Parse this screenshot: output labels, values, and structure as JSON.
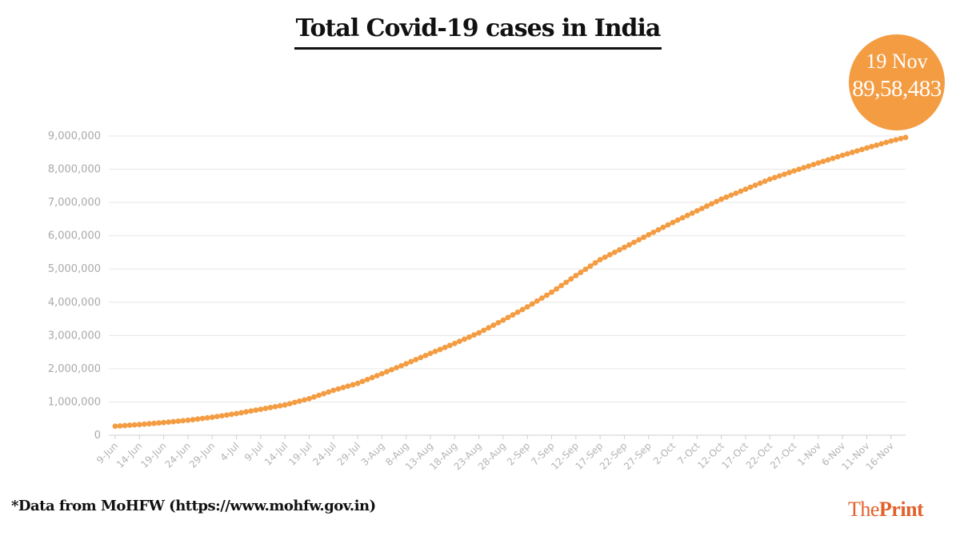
{
  "title": "Total Covid-19 cases in India",
  "callout": {
    "date": "19 Nov",
    "value": "89,58,483",
    "color": "#F39C42"
  },
  "footnote": "*Data from MoHFW (https://www.mohfw.gov.in)",
  "brand": {
    "part1": "The",
    "part2": "Print",
    "color": "#E35F2A"
  },
  "chart_data": {
    "type": "line",
    "title": "Total Covid-19 cases in India",
    "xlabel": "",
    "ylabel": "",
    "ylim": [
      0,
      9000000
    ],
    "yticks": [
      "0",
      "1,000,000",
      "2,000,000",
      "3,000,000",
      "4,000,000",
      "5,000,000",
      "6,000,000",
      "7,000,000",
      "8,000,000",
      "9,000,000"
    ],
    "xticks": [
      "9-Jun",
      "14-Jun",
      "19-Jun",
      "24-Jun",
      "29-Jun",
      "4-Jul",
      "9-Jul",
      "14-Jul",
      "19-Jul",
      "24-Jul",
      "29-Jul",
      "3-Aug",
      "8-Aug",
      "13-Aug",
      "18-Aug",
      "23-Aug",
      "28-Aug",
      "2-Sep",
      "7-Sep",
      "12-Sep",
      "17-Sep",
      "22-Sep",
      "27-Sep",
      "2-Oct",
      "7-Oct",
      "12-Oct",
      "17-Oct",
      "22-Oct",
      "27-Oct",
      "1-Nov",
      "6-Nov",
      "11-Nov",
      "16-Nov"
    ],
    "x_range": [
      "9-Jun",
      "19-Nov"
    ],
    "grid": true,
    "marker": "circle",
    "line_color": "#F39C42",
    "series": [
      {
        "x": [
          "9-Jun",
          "14-Jun",
          "19-Jun",
          "24-Jun",
          "29-Jun",
          "4-Jul",
          "9-Jul",
          "14-Jul",
          "19-Jul",
          "24-Jul",
          "29-Jul",
          "3-Aug",
          "8-Aug",
          "13-Aug",
          "18-Aug",
          "23-Aug",
          "28-Aug",
          "2-Sep",
          "7-Sep",
          "12-Sep",
          "17-Sep",
          "22-Sep",
          "27-Sep",
          "2-Oct",
          "7-Oct",
          "12-Oct",
          "17-Oct",
          "22-Oct",
          "27-Oct",
          "1-Nov",
          "6-Nov",
          "11-Nov",
          "16-Nov",
          "19-Nov"
        ],
        "values": [
          270000,
          320000,
          380000,
          450000,
          540000,
          650000,
          780000,
          910000,
          1100000,
          1350000,
          1560000,
          1850000,
          2150000,
          2460000,
          2760000,
          3080000,
          3460000,
          3860000,
          4300000,
          4800000,
          5280000,
          5650000,
          6030000,
          6400000,
          6750000,
          7100000,
          7400000,
          7700000,
          7950000,
          8190000,
          8420000,
          8640000,
          8850000,
          8958483
        ]
      }
    ]
  }
}
